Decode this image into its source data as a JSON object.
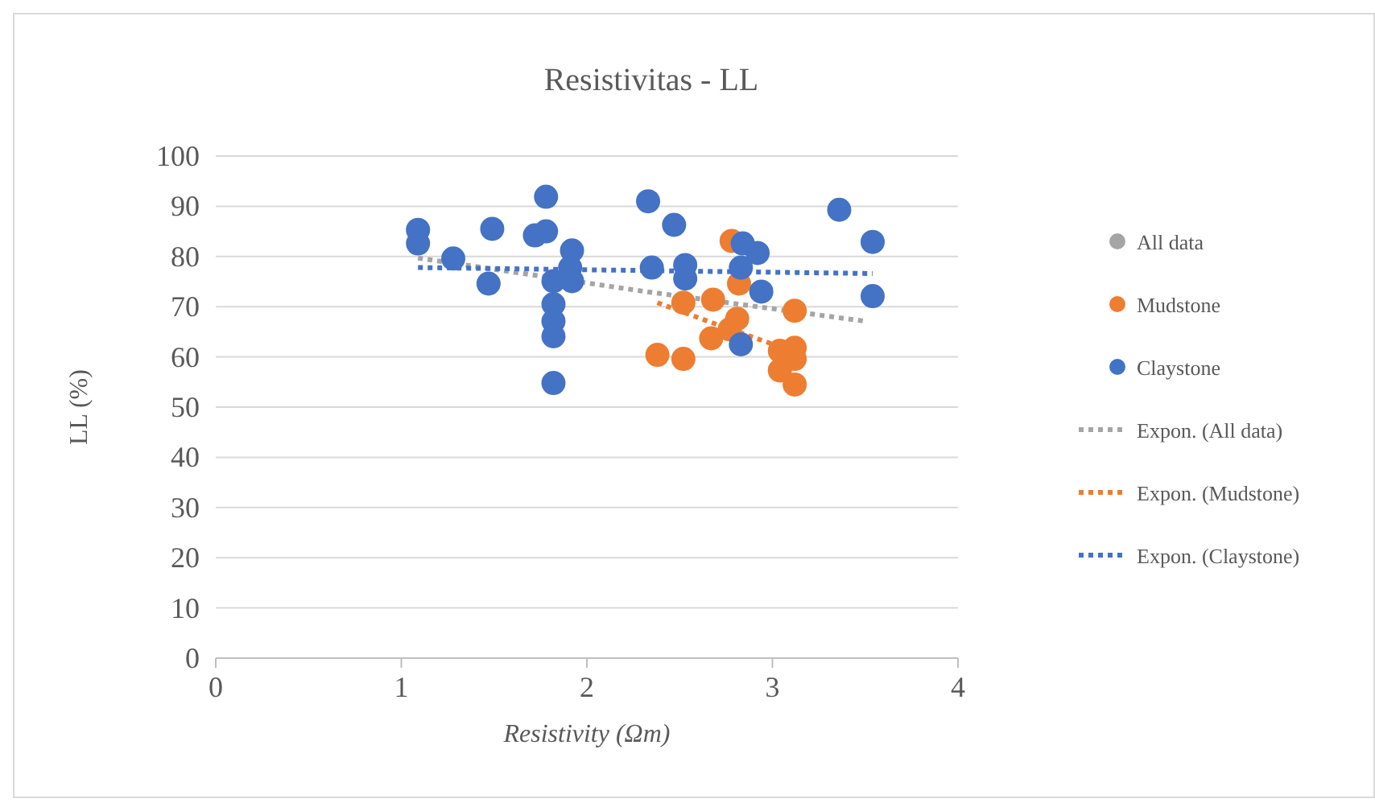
{
  "chart_data": {
    "type": "scatter",
    "title": "Resistivitas - LL",
    "xlabel": "Resistivity (Ωm)",
    "ylabel": "LL (%)",
    "xlim": [
      0,
      4
    ],
    "xticks": [
      0,
      1,
      2,
      3,
      4
    ],
    "ylim": [
      0,
      100
    ],
    "yticks": [
      0,
      10,
      20,
      30,
      40,
      50,
      60,
      70,
      80,
      90,
      100
    ],
    "grid": "y",
    "legend": "right",
    "marker": "circle",
    "series": [
      {
        "name": "All data",
        "color": "#a5a5a5"
      },
      {
        "name": "Mudstone",
        "color": "#ed7d31",
        "x": [
          2.78,
          2.82,
          2.52,
          2.68,
          2.38,
          2.52,
          2.67,
          2.81,
          2.77,
          3.12,
          3.04,
          3.12,
          3.12,
          3.04,
          3.12
        ],
        "values": [
          83.1,
          74.6,
          70.8,
          71.4,
          60.4,
          59.6,
          63.7,
          67.6,
          65.5,
          69.2,
          61.2,
          61.8,
          59.6,
          57.3,
          54.5
        ]
      },
      {
        "name": "Claystone",
        "color": "#4472c4",
        "x": [
          1.09,
          1.09,
          1.28,
          1.49,
          1.47,
          1.78,
          1.72,
          1.78,
          1.92,
          1.91,
          1.92,
          1.82,
          1.82,
          1.82,
          1.82,
          1.82,
          2.33,
          2.47,
          2.35,
          2.53,
          2.53,
          2.84,
          2.92,
          2.83,
          2.94,
          2.83,
          3.36,
          3.54,
          3.54
        ],
        "values": [
          85.3,
          82.6,
          79.6,
          85.5,
          74.6,
          91.9,
          84.2,
          85,
          81.2,
          77.8,
          75.1,
          75.1,
          70.5,
          67.1,
          64.1,
          54.8,
          91,
          86.3,
          77.8,
          78.3,
          75.6,
          82.6,
          80.7,
          77.8,
          73,
          62.5,
          89.3,
          82.9,
          72.1
        ]
      },
      {
        "name": "Expon. (All data)",
        "color": "#a5a5a5",
        "type": "line",
        "marker": "none",
        "line_style": "dotted",
        "x": [
          1.09,
          2.3,
          3.5
        ],
        "values": [
          79.7,
          73.1,
          67.1
        ]
      },
      {
        "name": "Expon. (Mudstone)",
        "color": "#ed7d31",
        "type": "line",
        "marker": "none",
        "line_style": "dotted",
        "x": [
          2.38,
          2.75,
          3.12
        ],
        "values": [
          70.8,
          65.8,
          61
        ]
      },
      {
        "name": "Expon. (Claystone)",
        "color": "#4472c4",
        "type": "line",
        "marker": "none",
        "line_style": "dotted",
        "x": [
          1.09,
          3.54
        ],
        "values": [
          77.8,
          76.6
        ]
      }
    ]
  }
}
